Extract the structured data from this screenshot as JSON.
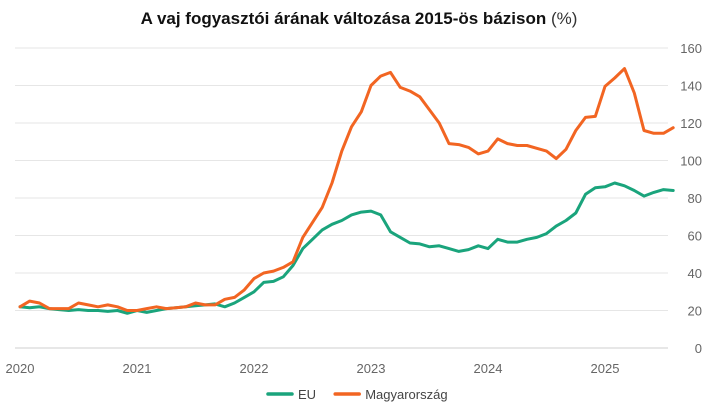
{
  "chart_data": {
    "type": "line",
    "title": "A vaj fogyasztói árának változása 2015-ös bázison",
    "title_unit": "(%)",
    "xlabel": "",
    "ylabel": "",
    "x_tick_labels": [
      "2020",
      "2021",
      "2022",
      "2023",
      "2024",
      "2025"
    ],
    "x_tick_values": [
      2020,
      2021,
      2022,
      2023,
      2024,
      2025
    ],
    "xlim": [
      2020,
      2025.5
    ],
    "ylim": [
      0,
      160
    ],
    "y_ticks": [
      0,
      20,
      40,
      60,
      80,
      100,
      120,
      140,
      160
    ],
    "y_tick_labels": [
      "0",
      "20",
      "40",
      "60",
      "80",
      "100",
      "120",
      "140",
      "160"
    ],
    "y_axis_side": "right",
    "grid": true,
    "legend_position": "bottom-center",
    "series": [
      {
        "name": "EU",
        "color": "#1aa47c",
        "points": [
          [
            2020.0,
            22
          ],
          [
            2020.083,
            21.5
          ],
          [
            2020.167,
            22
          ],
          [
            2020.25,
            21
          ],
          [
            2020.333,
            20.5
          ],
          [
            2020.417,
            20
          ],
          [
            2020.5,
            20.5
          ],
          [
            2020.583,
            20
          ],
          [
            2020.667,
            20
          ],
          [
            2020.75,
            19.5
          ],
          [
            2020.833,
            20
          ],
          [
            2020.917,
            18.5
          ],
          [
            2021.0,
            20
          ],
          [
            2021.083,
            19
          ],
          [
            2021.167,
            20
          ],
          [
            2021.25,
            21
          ],
          [
            2021.333,
            21.5
          ],
          [
            2021.417,
            22
          ],
          [
            2021.5,
            22.5
          ],
          [
            2021.583,
            23
          ],
          [
            2021.667,
            23.5
          ],
          [
            2021.75,
            22
          ],
          [
            2021.833,
            24
          ],
          [
            2021.917,
            27
          ],
          [
            2022.0,
            30
          ],
          [
            2022.083,
            35
          ],
          [
            2022.167,
            35.5
          ],
          [
            2022.25,
            38
          ],
          [
            2022.333,
            44
          ],
          [
            2022.417,
            53
          ],
          [
            2022.5,
            58
          ],
          [
            2022.583,
            63
          ],
          [
            2022.667,
            66
          ],
          [
            2022.75,
            68
          ],
          [
            2022.833,
            71
          ],
          [
            2022.917,
            72.5
          ],
          [
            2023.0,
            73
          ],
          [
            2023.083,
            71
          ],
          [
            2023.167,
            62
          ],
          [
            2023.25,
            59
          ],
          [
            2023.333,
            56
          ],
          [
            2023.417,
            55.5
          ],
          [
            2023.5,
            54
          ],
          [
            2023.583,
            54.5
          ],
          [
            2023.667,
            53
          ],
          [
            2023.75,
            51.5
          ],
          [
            2023.833,
            52.5
          ],
          [
            2023.917,
            54.5
          ],
          [
            2024.0,
            53
          ],
          [
            2024.083,
            58
          ],
          [
            2024.167,
            56.5
          ],
          [
            2024.25,
            56.5
          ],
          [
            2024.333,
            58
          ],
          [
            2024.417,
            59
          ],
          [
            2024.5,
            61
          ],
          [
            2024.583,
            65
          ],
          [
            2024.667,
            68
          ],
          [
            2024.75,
            72
          ],
          [
            2024.833,
            82
          ],
          [
            2024.917,
            85.5
          ],
          [
            2025.0,
            86
          ],
          [
            2025.083,
            88
          ],
          [
            2025.167,
            86.5
          ],
          [
            2025.25,
            84
          ],
          [
            2025.333,
            81
          ],
          [
            2025.417,
            83
          ],
          [
            2025.5,
            84.5
          ],
          [
            2025.583,
            84
          ]
        ]
      },
      {
        "name": "Magyarország",
        "color": "#f26522",
        "points": [
          [
            2020.0,
            22
          ],
          [
            2020.083,
            25
          ],
          [
            2020.167,
            24
          ],
          [
            2020.25,
            21
          ],
          [
            2020.333,
            21
          ],
          [
            2020.417,
            21
          ],
          [
            2020.5,
            24
          ],
          [
            2020.583,
            23
          ],
          [
            2020.667,
            22
          ],
          [
            2020.75,
            23
          ],
          [
            2020.833,
            22
          ],
          [
            2020.917,
            20
          ],
          [
            2021.0,
            20
          ],
          [
            2021.083,
            21
          ],
          [
            2021.167,
            22
          ],
          [
            2021.25,
            21
          ],
          [
            2021.333,
            21.5
          ],
          [
            2021.417,
            22
          ],
          [
            2021.5,
            24
          ],
          [
            2021.583,
            23
          ],
          [
            2021.667,
            23
          ],
          [
            2021.75,
            26
          ],
          [
            2021.833,
            27
          ],
          [
            2021.917,
            31
          ],
          [
            2022.0,
            37
          ],
          [
            2022.083,
            40
          ],
          [
            2022.167,
            41
          ],
          [
            2022.25,
            43
          ],
          [
            2022.333,
            46
          ],
          [
            2022.417,
            59
          ],
          [
            2022.5,
            67
          ],
          [
            2022.583,
            75
          ],
          [
            2022.667,
            88
          ],
          [
            2022.75,
            105
          ],
          [
            2022.833,
            118
          ],
          [
            2022.917,
            126
          ],
          [
            2023.0,
            140
          ],
          [
            2023.083,
            145
          ],
          [
            2023.167,
            147
          ],
          [
            2023.25,
            139
          ],
          [
            2023.333,
            137
          ],
          [
            2023.417,
            134
          ],
          [
            2023.5,
            127
          ],
          [
            2023.583,
            120
          ],
          [
            2023.667,
            109
          ],
          [
            2023.75,
            108.5
          ],
          [
            2023.833,
            107
          ],
          [
            2023.917,
            103.5
          ],
          [
            2024.0,
            105
          ],
          [
            2024.083,
            111.5
          ],
          [
            2024.167,
            109
          ],
          [
            2024.25,
            108
          ],
          [
            2024.333,
            108
          ],
          [
            2024.417,
            106.5
          ],
          [
            2024.5,
            105
          ],
          [
            2024.583,
            101
          ],
          [
            2024.667,
            106
          ],
          [
            2024.75,
            116
          ],
          [
            2024.833,
            123
          ],
          [
            2024.917,
            123.5
          ],
          [
            2025.0,
            139.5
          ],
          [
            2025.083,
            144
          ],
          [
            2025.167,
            149
          ],
          [
            2025.25,
            136
          ],
          [
            2025.333,
            116
          ],
          [
            2025.417,
            114.5
          ],
          [
            2025.5,
            114.5
          ],
          [
            2025.583,
            117.5
          ]
        ]
      }
    ]
  }
}
